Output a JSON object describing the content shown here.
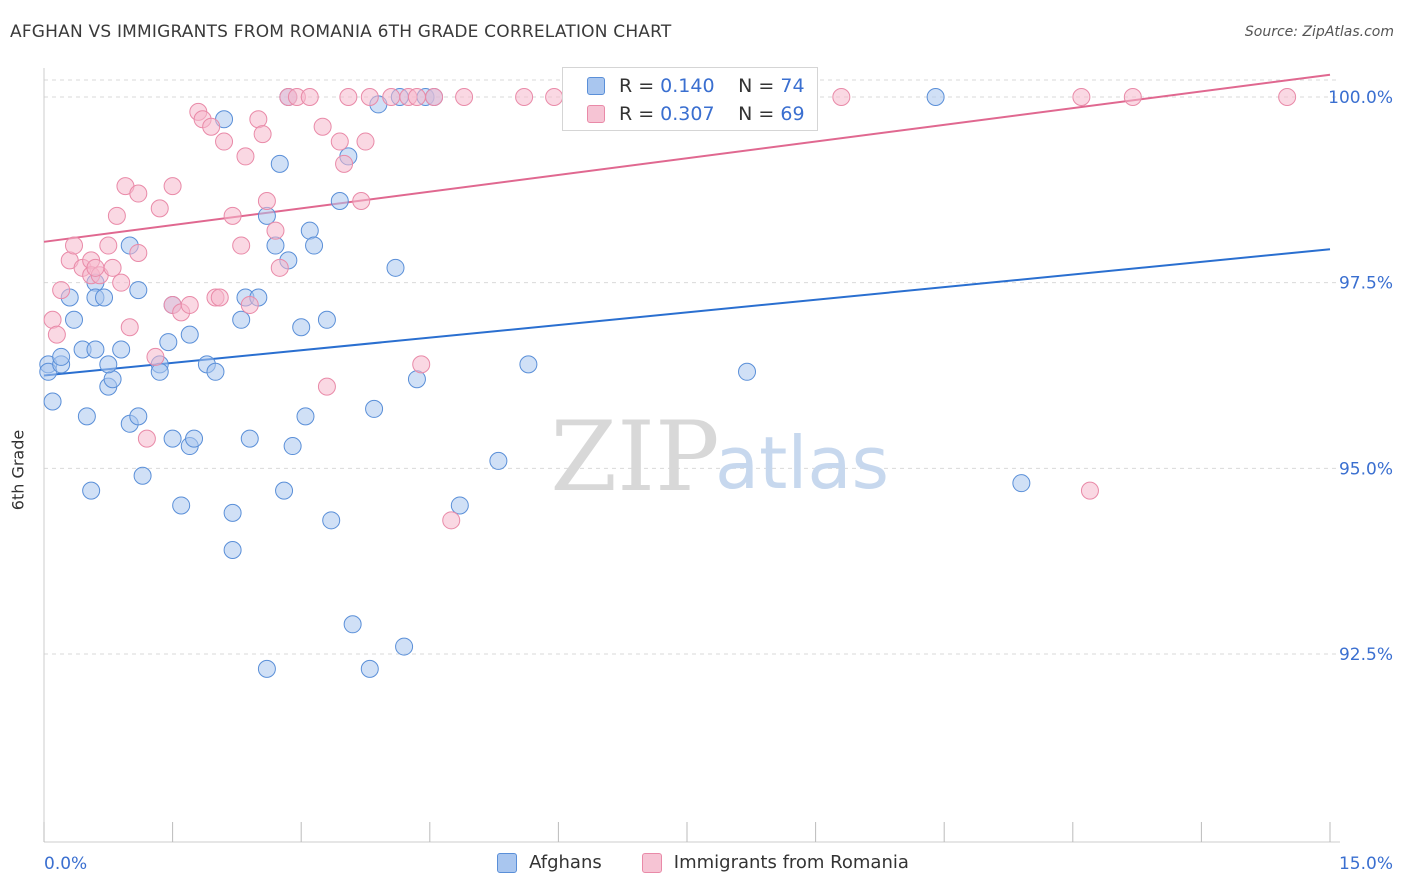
{
  "title": "AFGHAN VS IMMIGRANTS FROM ROMANIA 6TH GRADE CORRELATION CHART",
  "source": "Source: ZipAtlas.com",
  "watermark": {
    "zip": "ZIP",
    "atlas": "atlas"
  },
  "colors": {
    "blue_fill": "#a9c6ef",
    "blue_stroke": "#5a8fd8",
    "blue_line": "#2a6fd0",
    "pink_fill": "#f6b8cc",
    "pink_stroke": "#e98aa8",
    "pink_line": "#e06890",
    "tick_label": "#3a6fd0",
    "grid": "#d9d9d9"
  },
  "legend_top": [
    {
      "r_label": "R = ",
      "r_value": "0.140",
      "n_label": "N = ",
      "n_value": "74"
    },
    {
      "r_label": "R = ",
      "r_value": "0.307",
      "n_label": "N = ",
      "n_value": "69"
    }
  ],
  "legend_bottom": [
    "Afghans",
    "Immigrants from Romania"
  ],
  "chart_data": {
    "type": "scatter",
    "title": "AFGHAN VS IMMIGRANTS FROM ROMANIA 6TH GRADE CORRELATION CHART",
    "xlabel": "",
    "ylabel": "6th Grade",
    "xlim": [
      0,
      15
    ],
    "ylim": [
      90.0,
      100.3
    ],
    "x_tick_labels": [
      "0.0%",
      "15.0%"
    ],
    "y_ticks": [
      92.5,
      95.0,
      97.5,
      100.0
    ],
    "y_tick_labels": [
      "92.5%",
      "95.0%",
      "97.5%",
      "100.0%"
    ],
    "grid": "horizontal dashed",
    "legend_placement": "top-center and bottom",
    "series": [
      {
        "name": "Afghans",
        "r": 0.14,
        "n": 74,
        "trend": [
          [
            0,
            96.25
          ],
          [
            15,
            97.95
          ]
        ],
        "points": [
          [
            0.05,
            96.4
          ],
          [
            0.05,
            96.3
          ],
          [
            0.1,
            95.9
          ],
          [
            0.2,
            96.4
          ],
          [
            0.3,
            97.3
          ],
          [
            0.35,
            97.0
          ],
          [
            0.45,
            96.6
          ],
          [
            0.5,
            95.7
          ],
          [
            0.55,
            94.7
          ],
          [
            0.6,
            97.5
          ],
          [
            0.6,
            97.3
          ],
          [
            0.7,
            97.3
          ],
          [
            0.75,
            96.1
          ],
          [
            0.8,
            96.2
          ],
          [
            0.75,
            96.4
          ],
          [
            1.0,
            98.0
          ],
          [
            1.0,
            95.6
          ],
          [
            1.1,
            95.7
          ],
          [
            1.15,
            94.9
          ],
          [
            1.35,
            96.4
          ],
          [
            1.35,
            96.3
          ],
          [
            1.45,
            96.7
          ],
          [
            1.5,
            97.2
          ],
          [
            1.5,
            95.4
          ],
          [
            1.6,
            94.5
          ],
          [
            1.7,
            95.3
          ],
          [
            1.75,
            95.4
          ],
          [
            1.9,
            96.4
          ],
          [
            2.0,
            96.3
          ],
          [
            2.1,
            99.7
          ],
          [
            2.2,
            94.4
          ],
          [
            2.2,
            93.9
          ],
          [
            2.3,
            97.0
          ],
          [
            2.35,
            97.3
          ],
          [
            2.4,
            95.4
          ],
          [
            2.5,
            97.3
          ],
          [
            2.6,
            98.4
          ],
          [
            2.6,
            92.3
          ],
          [
            2.7,
            98.0
          ],
          [
            2.75,
            99.1
          ],
          [
            2.8,
            94.7
          ],
          [
            2.85,
            100.0
          ],
          [
            2.9,
            95.3
          ],
          [
            3.0,
            96.9
          ],
          [
            3.05,
            95.7
          ],
          [
            3.1,
            98.2
          ],
          [
            3.15,
            98.0
          ],
          [
            3.3,
            97.0
          ],
          [
            3.35,
            94.3
          ],
          [
            3.45,
            98.6
          ],
          [
            3.55,
            99.2
          ],
          [
            3.6,
            92.9
          ],
          [
            3.8,
            92.3
          ],
          [
            3.85,
            95.8
          ],
          [
            3.9,
            99.9
          ],
          [
            4.15,
            100.0
          ],
          [
            4.1,
            97.7
          ],
          [
            4.2,
            92.6
          ],
          [
            4.35,
            96.2
          ],
          [
            4.45,
            100.0
          ],
          [
            4.55,
            100.0
          ],
          [
            4.85,
            94.5
          ],
          [
            5.3,
            95.1
          ],
          [
            5.65,
            96.4
          ],
          [
            8.2,
            96.3
          ],
          [
            8.85,
            100.0
          ],
          [
            10.4,
            100.0
          ],
          [
            11.4,
            94.8
          ],
          [
            0.9,
            96.6
          ],
          [
            0.6,
            96.6
          ],
          [
            1.7,
            96.8
          ],
          [
            2.85,
            97.8
          ],
          [
            1.1,
            97.4
          ],
          [
            0.2,
            96.5
          ]
        ]
      },
      {
        "name": "Immigrants from Romania",
        "r": 0.307,
        "n": 69,
        "trend": [
          [
            0,
            98.05
          ],
          [
            15,
            100.3
          ]
        ],
        "points": [
          [
            0.1,
            97.0
          ],
          [
            0.15,
            96.8
          ],
          [
            0.2,
            97.4
          ],
          [
            0.3,
            97.8
          ],
          [
            0.35,
            98.0
          ],
          [
            0.45,
            97.7
          ],
          [
            0.55,
            97.8
          ],
          [
            0.55,
            97.6
          ],
          [
            0.65,
            97.6
          ],
          [
            0.75,
            98.0
          ],
          [
            0.8,
            97.7
          ],
          [
            0.85,
            98.4
          ],
          [
            0.9,
            97.5
          ],
          [
            0.95,
            98.8
          ],
          [
            1.0,
            96.9
          ],
          [
            1.1,
            98.7
          ],
          [
            1.2,
            95.4
          ],
          [
            1.3,
            96.5
          ],
          [
            1.35,
            98.5
          ],
          [
            1.5,
            97.2
          ],
          [
            1.5,
            98.8
          ],
          [
            1.6,
            97.1
          ],
          [
            1.7,
            97.2
          ],
          [
            1.8,
            99.8
          ],
          [
            1.85,
            99.7
          ],
          [
            1.95,
            99.6
          ],
          [
            2.0,
            97.3
          ],
          [
            2.05,
            97.3
          ],
          [
            2.1,
            99.4
          ],
          [
            2.2,
            98.4
          ],
          [
            2.3,
            98.0
          ],
          [
            2.35,
            99.2
          ],
          [
            2.4,
            97.2
          ],
          [
            2.5,
            99.7
          ],
          [
            2.55,
            99.5
          ],
          [
            2.6,
            98.6
          ],
          [
            2.7,
            98.2
          ],
          [
            2.75,
            97.7
          ],
          [
            2.85,
            100.0
          ],
          [
            2.95,
            100.0
          ],
          [
            3.1,
            100.0
          ],
          [
            3.25,
            99.6
          ],
          [
            3.3,
            96.1
          ],
          [
            3.45,
            99.4
          ],
          [
            3.5,
            99.1
          ],
          [
            3.55,
            100.0
          ],
          [
            3.7,
            98.6
          ],
          [
            3.75,
            99.4
          ],
          [
            3.8,
            100.0
          ],
          [
            4.05,
            100.0
          ],
          [
            4.25,
            100.0
          ],
          [
            4.35,
            100.0
          ],
          [
            4.4,
            96.4
          ],
          [
            4.55,
            100.0
          ],
          [
            4.75,
            94.3
          ],
          [
            4.9,
            100.0
          ],
          [
            5.6,
            100.0
          ],
          [
            5.95,
            100.0
          ],
          [
            6.35,
            100.0
          ],
          [
            7.05,
            100.0
          ],
          [
            7.5,
            100.0
          ],
          [
            8.25,
            100.0
          ],
          [
            9.3,
            100.0
          ],
          [
            12.1,
            100.0
          ],
          [
            12.7,
            100.0
          ],
          [
            12.2,
            94.7
          ],
          [
            14.5,
            100.0
          ],
          [
            0.6,
            97.7
          ],
          [
            1.1,
            97.9
          ]
        ]
      }
    ]
  }
}
